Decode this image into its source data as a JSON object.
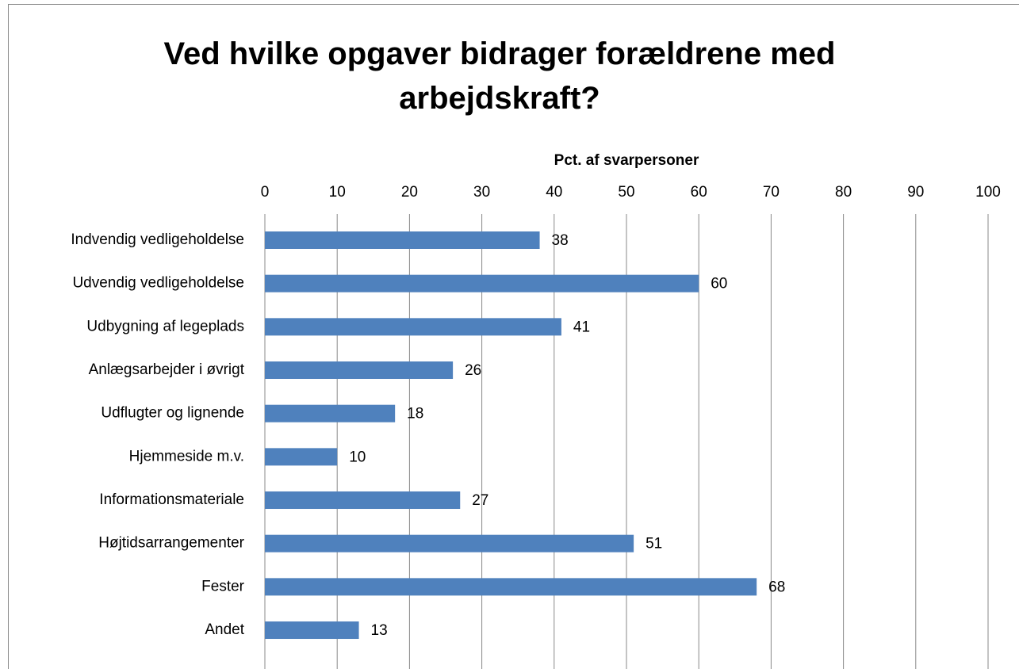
{
  "chart_data": {
    "type": "barh",
    "title": "Ved hvilke opgaver bidrager forældrene med arbejdskraft?",
    "x_label": "Pct. af svarpersoner",
    "categories": [
      "Indvendig vedligeholdelse",
      "Udvendig vedligeholdelse",
      "Udbygning af legeplads",
      "Anlægsarbejder i øvrigt",
      "Udflugter og lignende",
      "Hjemmeside m.v.",
      "Informationsmateriale",
      "Højtidsarrangementer",
      "Fester",
      "Andet"
    ],
    "values": [
      38,
      60,
      41,
      26,
      18,
      10,
      27,
      51,
      68,
      13
    ],
    "color": "#4f81bd",
    "xlim": [
      0,
      100
    ],
    "xticks": [
      0,
      10,
      20,
      30,
      40,
      50,
      60,
      70,
      80,
      90,
      100
    ],
    "grid": true
  }
}
